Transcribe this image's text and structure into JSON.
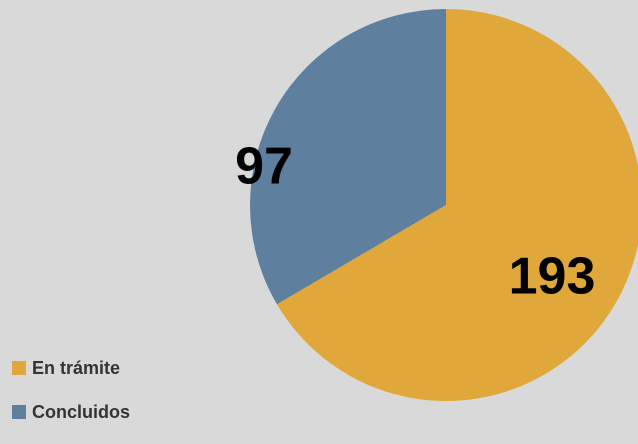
{
  "chart_data": {
    "type": "pie",
    "title": "",
    "slices": [
      {
        "label": "En trámite",
        "value": 193,
        "color": "#e0a83a"
      },
      {
        "label": "Concluidos",
        "value": 97,
        "color": "#5f7f9e"
      }
    ],
    "start_angle": "12 o'clock",
    "direction": "clockwise",
    "data_labels": true,
    "legend": "bottom-left"
  }
}
